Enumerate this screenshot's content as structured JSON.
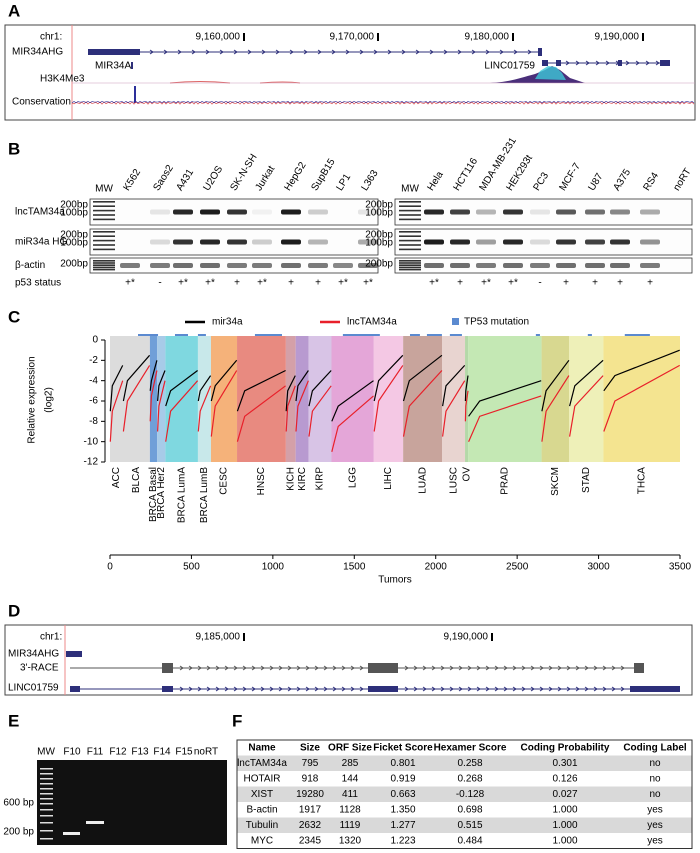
{
  "panel_labels": [
    "A",
    "B",
    "C",
    "D",
    "E",
    "F"
  ],
  "panel_a": {
    "chrom": "chr1:",
    "ticks": [
      "9,160,000",
      "9,170,000",
      "9,180,000",
      "9,190,000"
    ],
    "genes": [
      "MIR34AHG",
      "MIR34A",
      "LINC01759"
    ],
    "tracks": [
      "H3K4Me3",
      "Conservation"
    ]
  },
  "panel_b": {
    "lanes_left": [
      "MW",
      "K562",
      "Saos2",
      "A431",
      "U2OS",
      "SK-N-SH",
      "Jurkat",
      "HepG2",
      "SupB15",
      "LP1",
      "L363"
    ],
    "lanes_right": [
      "MW",
      "Hela",
      "HCT116",
      "MDA-MB-231",
      "HEK293t",
      "PC3",
      "MCF-7",
      "U87",
      "A375",
      "RS4",
      "noRT"
    ],
    "rows": [
      "lncTAM34a",
      "miR34a HG",
      "β-actin"
    ],
    "size_markers": [
      "200bp",
      "100bp"
    ],
    "status_label": "p53 status",
    "status_left": [
      null,
      "+*",
      "-",
      "+*",
      "+*",
      "+",
      "+*",
      "+",
      "+",
      "+*",
      "+*"
    ],
    "status_right": [
      null,
      "+*",
      "+",
      "+*",
      "+*",
      "-",
      "+",
      "+",
      "+",
      "+",
      null
    ]
  },
  "chart_data": {
    "type": "line",
    "xlabel": "Tumors",
    "ylabel": [
      "Relative expression",
      "(log2)"
    ],
    "xlim": [
      0,
      3500
    ],
    "xticks": [
      0,
      500,
      1000,
      1500,
      2000,
      2500,
      3000,
      3500
    ],
    "ylim": [
      -12,
      0
    ],
    "yticks": [
      0,
      -2,
      -4,
      -6,
      -8,
      -10,
      -12
    ],
    "categories": [
      "ACC",
      "BLCA",
      "BRCA Basal",
      "BRCA Her2",
      "BRCA LumA",
      "BRCA LumB",
      "CESC",
      "HNSC",
      "KICH",
      "KIRC",
      "KIRP",
      "LGG",
      "LIHC",
      "LUAD",
      "LUSC",
      "OV",
      "PRAD",
      "SKCM",
      "STAD",
      "THCA"
    ],
    "category_edges": [
      0,
      80,
      245,
      290,
      340,
      540,
      620,
      780,
      1080,
      1140,
      1220,
      1360,
      1620,
      1800,
      2040,
      2180,
      2200,
      2650,
      2820,
      3030,
      3500
    ],
    "category_colors": [
      "#dcdcdc",
      "#dcdcdc",
      "#6f9fd8",
      "#a7cbe8",
      "#7fd8e0",
      "#c8e8ea",
      "#f5b27a",
      "#e88a80",
      "#d4a0a8",
      "#b89ad0",
      "#d8c4e6",
      "#e4a6d8",
      "#f4c8e4",
      "#c8a49c",
      "#e8d4d0",
      "#b4d8a8",
      "#c4e8b4",
      "#d8d890",
      "#eef0b8",
      "#f4e490"
    ],
    "x": [
      2,
      14,
      78,
      null,
      82,
      107,
      243,
      null,
      247,
      254,
      288,
      null,
      292,
      300,
      338,
      null,
      342,
      372,
      538,
      null,
      542,
      554,
      618,
      null,
      622,
      646,
      778,
      null,
      782,
      827,
      1078,
      null,
      1082,
      1091,
      1138,
      null,
      1142,
      1154,
      1218,
      null,
      1222,
      1243,
      1358,
      null,
      1362,
      1401,
      1618,
      null,
      1622,
      1649,
      1798,
      null,
      1802,
      1838,
      2038,
      null,
      2042,
      2063,
      2178,
      null,
      2182,
      2185,
      2198,
      null,
      2202,
      2270,
      2648,
      null,
      2652,
      2678,
      2818,
      null,
      2822,
      2854,
      3028,
      null,
      3032,
      3100,
      3498
    ],
    "series": [
      {
        "name": "mir34a",
        "color": "#000000",
        "values": [
          -7,
          -4.5,
          -2.5,
          null,
          -6,
          -4,
          -1.5,
          null,
          -5,
          -4,
          -2,
          null,
          -6,
          -4.5,
          -3,
          null,
          -6.5,
          -5,
          -3,
          null,
          -6,
          -5,
          -3.5,
          null,
          -6,
          -4.5,
          -2,
          null,
          -7,
          -5,
          -3,
          null,
          -7,
          -5,
          -3.5,
          null,
          -6,
          -4.5,
          -3,
          null,
          -6.5,
          -5,
          -3,
          null,
          -8,
          -6.5,
          -4,
          null,
          -6,
          -4,
          -1.5,
          null,
          -6,
          -4,
          -1.5,
          null,
          -6.5,
          -4.5,
          -2.5,
          null,
          -6,
          -5,
          -3.5,
          null,
          -7.5,
          -6,
          -4,
          null,
          -7,
          -5,
          -2,
          null,
          -6.5,
          -4.5,
          -2,
          null,
          -5,
          -3.5,
          -1
        ]
      },
      {
        "name": "lncTAM34a",
        "color": "#e8202a",
        "values": [
          -10,
          -7,
          -4,
          null,
          -9,
          -6,
          -2.5,
          null,
          -8,
          -5.5,
          -3,
          null,
          -9,
          -6.5,
          -4,
          null,
          -10,
          -7,
          -4,
          null,
          -9,
          -7,
          -4.5,
          null,
          -9.5,
          -6.5,
          -3,
          null,
          -10,
          -7.5,
          -4.5,
          null,
          -9,
          -6.5,
          -4.5,
          null,
          -9,
          -6.5,
          -4,
          null,
          -9.5,
          -7,
          -4.5,
          null,
          -11,
          -8.5,
          -5.5,
          null,
          -9,
          -6,
          -2.5,
          null,
          -9.5,
          -6.5,
          -3,
          null,
          -9.5,
          -7,
          -4,
          null,
          -8,
          -6.5,
          -5,
          null,
          -10,
          -7.5,
          -5.5,
          null,
          -10,
          -7,
          -3.5,
          null,
          -9.5,
          -6.5,
          -3.5,
          null,
          -9,
          -6,
          -2.5
        ]
      },
      {
        "name": "TP53 mutation",
        "color": "#5b8ad0",
        "marker": "square",
        "ranges": [
          [
            172,
            295
          ],
          [
            399,
            479
          ],
          [
            540,
            589
          ],
          [
            890,
            1056
          ],
          [
            1430,
            1657
          ],
          [
            1842,
            1903
          ],
          [
            1946,
            2038
          ],
          [
            2087,
            2161
          ],
          [
            2615,
            2640
          ],
          [
            2934,
            2959
          ],
          [
            3161,
            3315
          ]
        ]
      }
    ]
  },
  "panel_d": {
    "chrom": "chr1:",
    "ticks": [
      "9,185,000",
      "9,190,000"
    ],
    "tracks": [
      "MIR34AHG",
      "3'-RACE",
      "LINC01759"
    ]
  },
  "panel_e": {
    "lanes": [
      "MW",
      "F10",
      "F11",
      "F12",
      "F13",
      "F14",
      "F15",
      "noRT"
    ],
    "markers": [
      "600 bp",
      "200 bp"
    ]
  },
  "table": {
    "header": [
      "Name",
      "Size",
      "ORF Size",
      "Ficket Score",
      "Hexamer Score",
      "Coding Probability",
      "Coding Label"
    ],
    "rows": [
      [
        "lncTAM34a",
        "795",
        "285",
        "0.801",
        "0.258",
        "0.301",
        "no"
      ],
      [
        "HOTAIR",
        "918",
        "144",
        "0.919",
        "0.268",
        "0.126",
        "no"
      ],
      [
        "XIST",
        "19280",
        "411",
        "0.663",
        "-0.128",
        "0.027",
        "no"
      ],
      [
        "B-actin",
        "1917",
        "1128",
        "1.350",
        "0.698",
        "1.000",
        "yes"
      ],
      [
        "Tubulin",
        "2632",
        "1119",
        "1.277",
        "0.515",
        "1.000",
        "yes"
      ],
      [
        "MYC",
        "2345",
        "1320",
        "1.223",
        "0.484",
        "1.000",
        "yes"
      ]
    ]
  }
}
